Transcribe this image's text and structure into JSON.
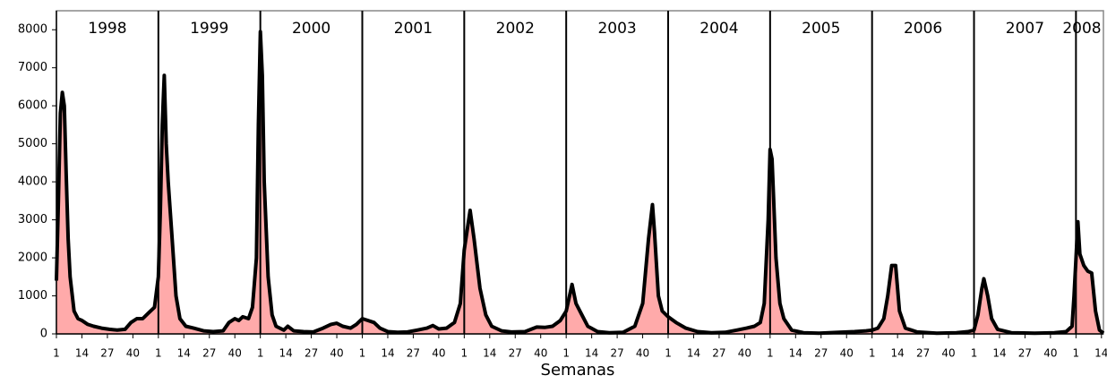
{
  "chart_data": {
    "type": "area",
    "x_label": "Semanas",
    "x": [
      1,
      2,
      3,
      4,
      5,
      6,
      7,
      8,
      10,
      12,
      14,
      17,
      20,
      24,
      28,
      32,
      36,
      39,
      42,
      45,
      48,
      51,
      53,
      54,
      55,
      56,
      57,
      58,
      60,
      62,
      64,
      67,
      71,
      76,
      81,
      86,
      89,
      92,
      94,
      96,
      99,
      101,
      103,
      104,
      105,
      106,
      107,
      109,
      111,
      113,
      117,
      119,
      122,
      127,
      132,
      137,
      141,
      144,
      147,
      151,
      154,
      157,
      160,
      163,
      166,
      170,
      175,
      180,
      185,
      190,
      193,
      196,
      200,
      204,
      207,
      209,
      212,
      214,
      217,
      220,
      223,
      228,
      233,
      240,
      246,
      250,
      254,
      258,
      261,
      264,
      266,
      269,
      272,
      277,
      283,
      290,
      296,
      300,
      303,
      305,
      306,
      308,
      310,
      313,
      317,
      322,
      328,
      335,
      342,
      348,
      353,
      357,
      360,
      362,
      364,
      365,
      366,
      368,
      370,
      372,
      376,
      382,
      390,
      400,
      408,
      414,
      417,
      420,
      423,
      425,
      427,
      429,
      431,
      434,
      440,
      450,
      460,
      466,
      469,
      471,
      473,
      474,
      476,
      478,
      481,
      488,
      500,
      510,
      516,
      519,
      520,
      521,
      522,
      523,
      525,
      527,
      529,
      531,
      533,
      535
    ],
    "series": [
      {
        "color": "#ffaaaa",
        "line_color": "#000000",
        "values": [
          1400,
          3500,
          5800,
          6350,
          6000,
          4200,
          2500,
          1500,
          600,
          400,
          350,
          250,
          200,
          150,
          120,
          100,
          120,
          300,
          400,
          400,
          550,
          700,
          1500,
          3200,
          5500,
          6800,
          5000,
          4000,
          2500,
          1000,
          400,
          200,
          150,
          80,
          60,
          80,
          300,
          400,
          350,
          450,
          400,
          700,
          2000,
          5500,
          7950,
          6800,
          4000,
          1500,
          500,
          200,
          100,
          200,
          80,
          60,
          50,
          150,
          250,
          280,
          200,
          150,
          250,
          400,
          350,
          300,
          150,
          60,
          40,
          50,
          100,
          150,
          220,
          130,
          150,
          300,
          800,
          2200,
          3250,
          2500,
          1200,
          500,
          200,
          80,
          50,
          60,
          180,
          170,
          200,
          350,
          600,
          1300,
          800,
          500,
          200,
          60,
          30,
          40,
          200,
          800,
          2500,
          3400,
          2700,
          1000,
          600,
          450,
          300,
          150,
          60,
          30,
          40,
          100,
          150,
          200,
          300,
          800,
          3000,
          4850,
          4600,
          2000,
          800,
          400,
          100,
          30,
          20,
          40,
          60,
          80,
          100,
          150,
          400,
          1000,
          1800,
          1800,
          600,
          150,
          50,
          20,
          30,
          60,
          100,
          500,
          1200,
          1450,
          1000,
          400,
          120,
          30,
          20,
          30,
          60,
          200,
          1000,
          2000,
          2950,
          2100,
          1800,
          1650,
          1600,
          600,
          100,
          20
        ]
      }
    ],
    "xlim": [
      1,
      535
    ],
    "ylim": [
      0,
      8500
    ],
    "yticks": [
      0,
      1000,
      2000,
      3000,
      4000,
      5000,
      6000,
      7000,
      8000
    ],
    "xticks": [
      {
        "value": 1,
        "label": "1"
      },
      {
        "value": 14,
        "label": "14"
      },
      {
        "value": 27,
        "label": "27"
      },
      {
        "value": 40,
        "label": "40"
      },
      {
        "value": 53,
        "label": "1"
      },
      {
        "value": 66,
        "label": "14"
      },
      {
        "value": 79,
        "label": "27"
      },
      {
        "value": 92,
        "label": "40"
      },
      {
        "value": 105,
        "label": "1"
      },
      {
        "value": 118,
        "label": "14"
      },
      {
        "value": 131,
        "label": "27"
      },
      {
        "value": 144,
        "label": "40"
      },
      {
        "value": 157,
        "label": "1"
      },
      {
        "value": 170,
        "label": "14"
      },
      {
        "value": 183,
        "label": "27"
      },
      {
        "value": 196,
        "label": "40"
      },
      {
        "value": 209,
        "label": "1"
      },
      {
        "value": 222,
        "label": "14"
      },
      {
        "value": 235,
        "label": "27"
      },
      {
        "value": 248,
        "label": "40"
      },
      {
        "value": 261,
        "label": "1"
      },
      {
        "value": 274,
        "label": "14"
      },
      {
        "value": 287,
        "label": "27"
      },
      {
        "value": 300,
        "label": "40"
      },
      {
        "value": 313,
        "label": "1"
      },
      {
        "value": 326,
        "label": "14"
      },
      {
        "value": 339,
        "label": "27"
      },
      {
        "value": 352,
        "label": "40"
      },
      {
        "value": 365,
        "label": "1"
      },
      {
        "value": 378,
        "label": "14"
      },
      {
        "value": 391,
        "label": "27"
      },
      {
        "value": 404,
        "label": "40"
      },
      {
        "value": 417,
        "label": "1"
      },
      {
        "value": 430,
        "label": "14"
      },
      {
        "value": 443,
        "label": "27"
      },
      {
        "value": 456,
        "label": "40"
      },
      {
        "value": 469,
        "label": "1"
      },
      {
        "value": 482,
        "label": "14"
      },
      {
        "value": 495,
        "label": "27"
      },
      {
        "value": 508,
        "label": "40"
      },
      {
        "value": 521,
        "label": "1"
      },
      {
        "value": 534,
        "label": "14"
      }
    ],
    "annotations": [
      {
        "text": "1998",
        "x": 1
      },
      {
        "text": "1999",
        "x": 53
      },
      {
        "text": "2000",
        "x": 105
      },
      {
        "text": "2001",
        "x": 157
      },
      {
        "text": "2002",
        "x": 209
      },
      {
        "text": "2003",
        "x": 261
      },
      {
        "text": "2004",
        "x": 313
      },
      {
        "text": "2005",
        "x": 365
      },
      {
        "text": "2006",
        "x": 417
      },
      {
        "text": "2007",
        "x": 469
      },
      {
        "text": "2008",
        "x": 521
      }
    ]
  }
}
